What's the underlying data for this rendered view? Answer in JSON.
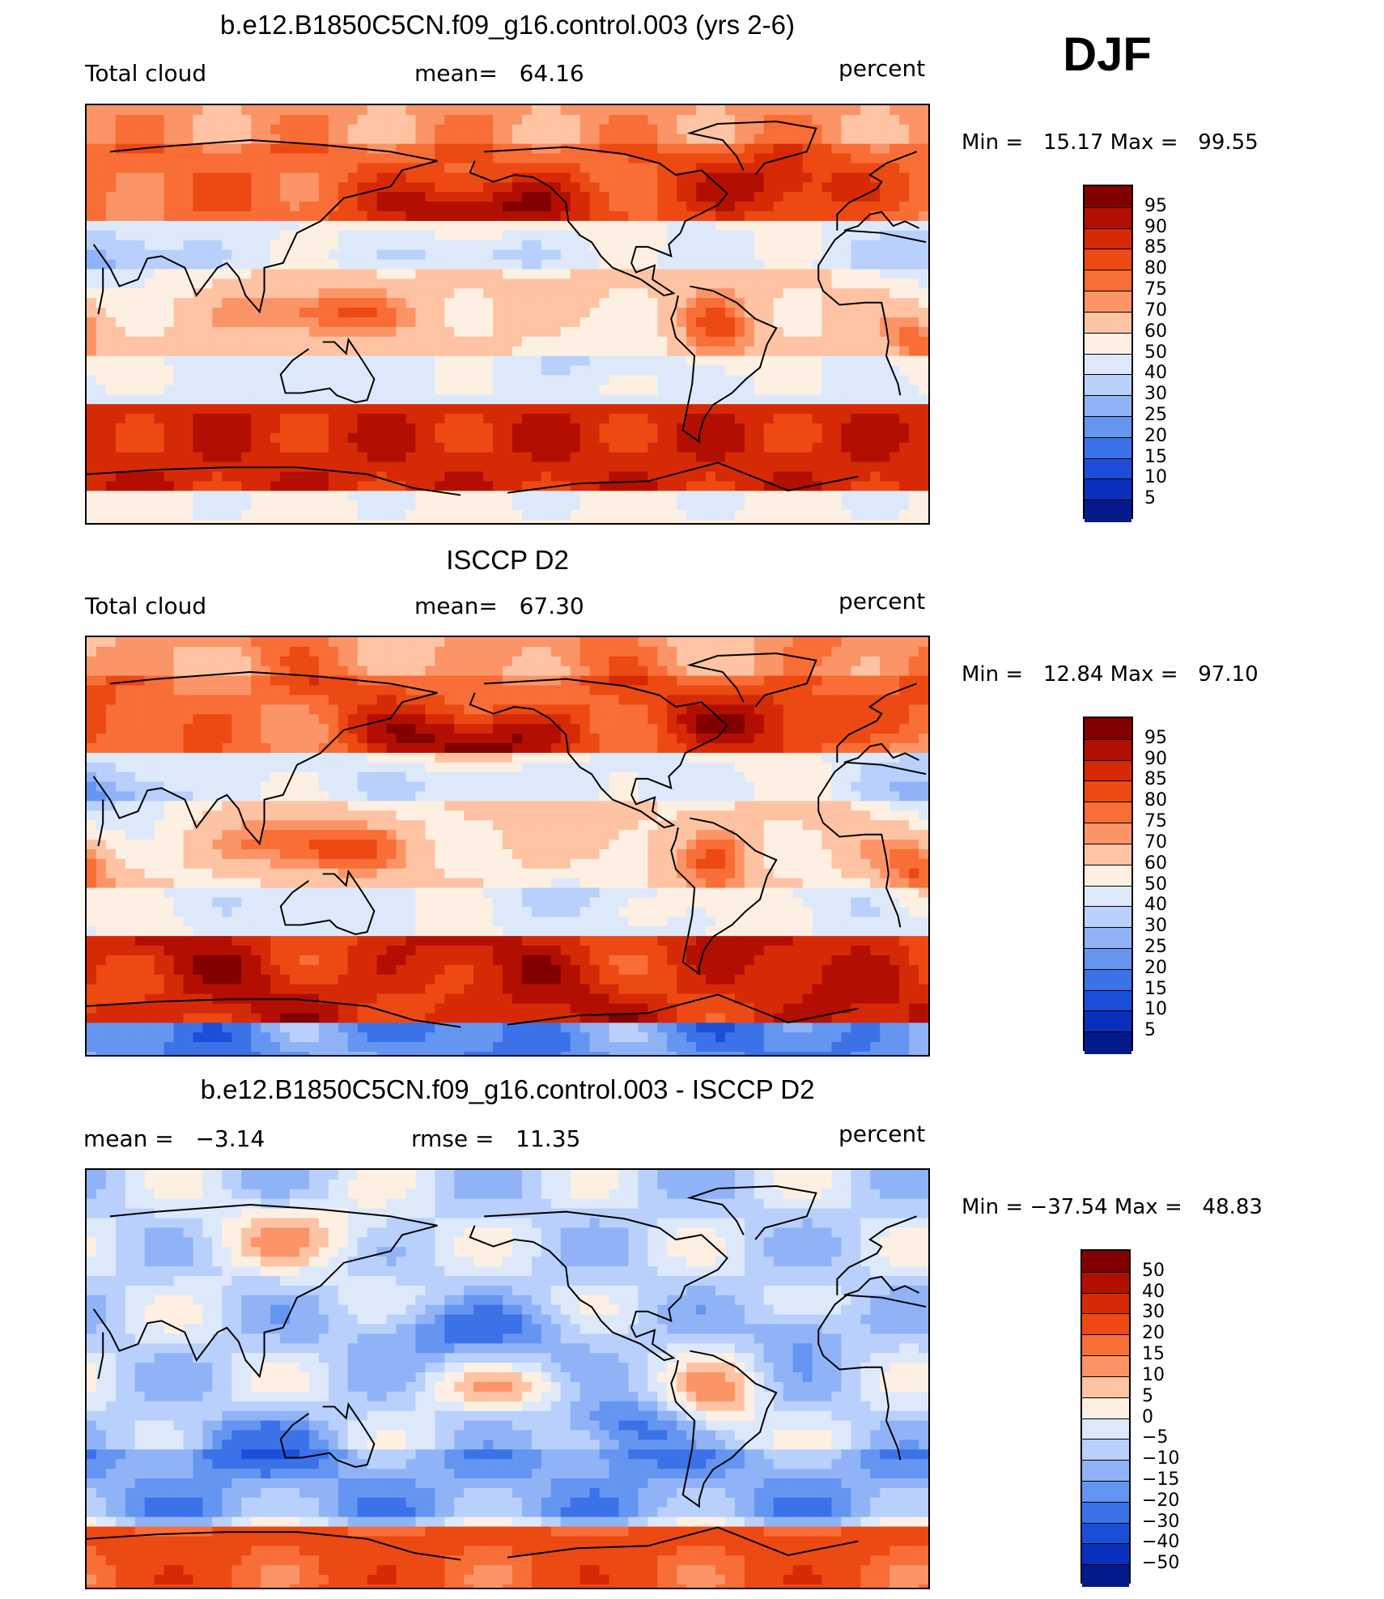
{
  "season": "DJF",
  "panels": [
    {
      "id": "model",
      "title": "b.e12.B1850C5CN.f09_g16.control.003 (yrs 2-6)",
      "left_label": "Total cloud",
      "center_label": "mean=   64.16",
      "right_label": "percent",
      "stats": "Min =   15.17 Max =   99.55",
      "field_description": "model total cloud fraction",
      "colorbar": {
        "labels": [
          "95",
          "90",
          "85",
          "80",
          "75",
          "70",
          "60",
          "50",
          "40",
          "30",
          "25",
          "20",
          "15",
          "10",
          "5"
        ],
        "colors": [
          "#820000",
          "#b20f02",
          "#d62a06",
          "#ec4a12",
          "#f96d36",
          "#fb9466",
          "#fdc3a2",
          "#fdf0e2",
          "#dde9fa",
          "#b8d0fb",
          "#90b3f8",
          "#6495f0",
          "#3b72e8",
          "#1c4fd9",
          "#0a2fbc",
          "#031a8c"
        ]
      }
    },
    {
      "id": "obs",
      "title": "ISCCP D2",
      "left_label": "Total cloud",
      "center_label": "mean=   67.30",
      "right_label": "percent",
      "stats": "Min =   12.84 Max =   97.10",
      "field_description": "observed total cloud fraction",
      "colorbar": {
        "labels": [
          "95",
          "90",
          "85",
          "80",
          "75",
          "70",
          "60",
          "50",
          "40",
          "30",
          "25",
          "20",
          "15",
          "10",
          "5"
        ],
        "colors": [
          "#820000",
          "#b20f02",
          "#d62a06",
          "#ec4a12",
          "#f96d36",
          "#fb9466",
          "#fdc3a2",
          "#fdf0e2",
          "#dde9fa",
          "#b8d0fb",
          "#90b3f8",
          "#6495f0",
          "#3b72e8",
          "#1c4fd9",
          "#0a2fbc",
          "#031a8c"
        ]
      }
    },
    {
      "id": "diff",
      "title": "b.e12.B1850C5CN.f09_g16.control.003 - ISCCP D2",
      "left_label": "mean =   −3.14",
      "center_label": "rmse =   11.35",
      "right_label": "percent",
      "stats": "Min = −37.54 Max =   48.83",
      "field_description": "model minus observation difference",
      "colorbar": {
        "labels": [
          "50",
          "40",
          "30",
          "20",
          "15",
          "10",
          "5",
          "0",
          "−5",
          "−10",
          "−15",
          "−20",
          "−30",
          "−40",
          "−50"
        ],
        "colors": [
          "#820000",
          "#b20f02",
          "#d62a06",
          "#ec4a12",
          "#f96d36",
          "#fb9466",
          "#fdc3a2",
          "#fdf0e2",
          "#dde9fa",
          "#b8d0fb",
          "#90b3f8",
          "#6495f0",
          "#3b72e8",
          "#1c4fd9",
          "#0a2fbc",
          "#031a8c"
        ]
      }
    }
  ]
}
